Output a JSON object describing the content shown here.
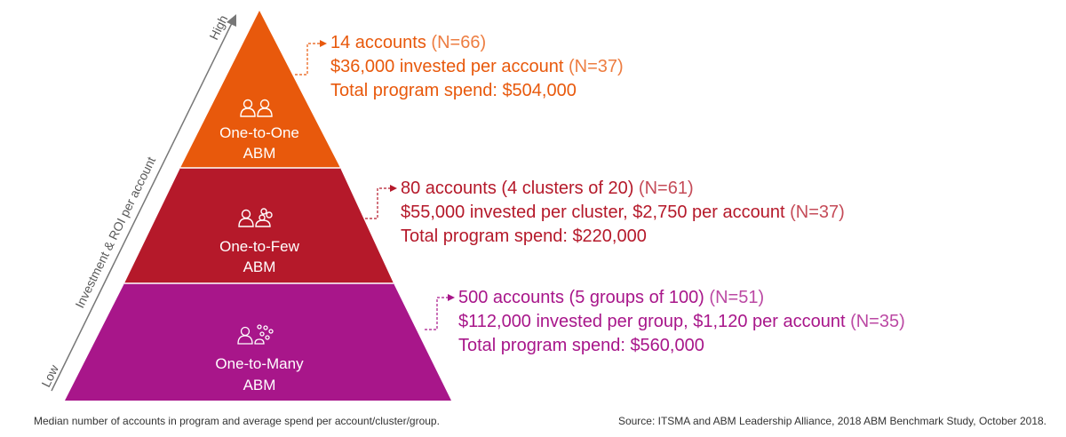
{
  "axis": {
    "high_label": "High",
    "low_label": "Low",
    "title": "Investment & ROI per account"
  },
  "tiers": [
    {
      "name_line1": "One-to-One",
      "name_line2": "ABM",
      "icon": "two-people-icon",
      "color": "#e8590c",
      "detail": {
        "accounts": "14 accounts",
        "accounts_n": "(N=66)",
        "invested": "$36,000 invested per account",
        "invested_n": "(N=37)",
        "total": "Total program spend: $504,000"
      }
    },
    {
      "name_line1": "One-to-Few",
      "name_line2": "ABM",
      "icon": "person-and-cluster-icon",
      "color": "#b5192a",
      "detail": {
        "accounts": "80 accounts (4 clusters of 20)",
        "accounts_n": "(N=61)",
        "invested": "$55,000 invested per cluster, $2,750 per account",
        "invested_n": "(N=37)",
        "total": "Total program spend: $220,000"
      }
    },
    {
      "name_line1": "One-to-Many",
      "name_line2": "ABM",
      "icon": "person-and-crowd-icon",
      "color": "#a8168a",
      "detail": {
        "accounts": "500 accounts (5 groups of 100)",
        "accounts_n": "(N=51)",
        "invested": "$112,000 invested per group, $1,120 per account",
        "invested_n": "(N=35)",
        "total": "Total program spend: $560,000"
      }
    }
  ],
  "footnote_left": "Median number of accounts in program and average spend per account/cluster/group.",
  "footnote_right": "Source: ITSMA and ABM Leadership Alliance, 2018 ABM Benchmark Study, October 2018."
}
